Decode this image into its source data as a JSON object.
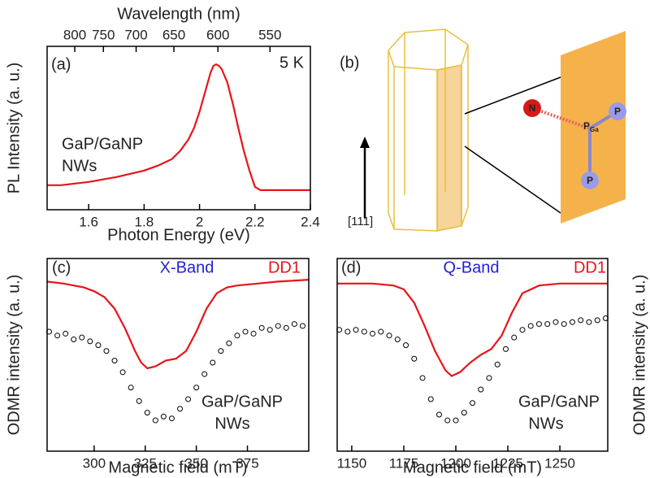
{
  "chart_data": [
    {
      "type": "line",
      "xlabel": "Photon Energy (eV)",
      "ylabel": "PL Intensity (a. u.)",
      "x2label": "Wavelength (nm)",
      "xlim": [
        1.45,
        2.4
      ],
      "xticks": [
        1.6,
        1.8,
        2.0,
        2.2,
        2.4
      ],
      "x2ticks": [
        800,
        750,
        700,
        650,
        600,
        550
      ],
      "ylim": [
        0,
        1
      ],
      "color": "#e8141a",
      "x": [
        1.45,
        1.5,
        1.6,
        1.7,
        1.8,
        1.85,
        1.9,
        1.93,
        1.96,
        1.98,
        2.0,
        2.02,
        2.04,
        2.05,
        2.06,
        2.07,
        2.08,
        2.1,
        2.12,
        2.14,
        2.16,
        2.18,
        2.2,
        2.22,
        2.3,
        2.4
      ],
      "values": [
        0.15,
        0.15,
        0.17,
        0.2,
        0.24,
        0.27,
        0.31,
        0.36,
        0.43,
        0.5,
        0.6,
        0.72,
        0.84,
        0.88,
        0.89,
        0.88,
        0.86,
        0.78,
        0.65,
        0.5,
        0.36,
        0.24,
        0.14,
        0.12,
        0.12,
        0.12
      ],
      "annotations": [
        {
          "text": "(a)"
        },
        {
          "text": "5 K"
        },
        {
          "text": "GaP/GaNP"
        },
        {
          "text": "NWs"
        }
      ]
    },
    {
      "type": "scatter",
      "xlabel": "Magnetic field (mT)",
      "ylabel": "ODMR intensity (a. u.)",
      "xlim": [
        277,
        405
      ],
      "xticks": [
        300,
        325,
        350,
        375
      ],
      "ylim": [
        0,
        1
      ],
      "series": [
        {
          "name": "DD1",
          "color": "#e8141a",
          "mode": "line",
          "x": [
            277,
            285,
            295,
            300,
            305,
            310,
            315,
            320,
            323,
            326,
            330,
            335,
            340,
            345,
            350,
            355,
            360,
            365,
            370,
            380,
            390,
            405
          ],
          "values": [
            0.88,
            0.87,
            0.85,
            0.83,
            0.8,
            0.74,
            0.64,
            0.52,
            0.46,
            0.43,
            0.44,
            0.47,
            0.48,
            0.52,
            0.62,
            0.74,
            0.82,
            0.85,
            0.86,
            0.87,
            0.88,
            0.89
          ]
        },
        {
          "color": "#000000",
          "mode": "markers",
          "x": [
            278,
            282,
            286,
            290,
            294,
            298,
            302,
            306,
            310,
            314,
            318,
            322,
            326,
            330,
            334,
            338,
            342,
            346,
            350,
            354,
            358,
            362,
            366,
            370,
            374,
            378,
            382,
            386,
            390,
            394,
            398,
            402
          ],
          "values": [
            0.62,
            0.6,
            0.61,
            0.58,
            0.59,
            0.57,
            0.55,
            0.52,
            0.47,
            0.41,
            0.33,
            0.26,
            0.2,
            0.16,
            0.18,
            0.17,
            0.22,
            0.27,
            0.33,
            0.4,
            0.46,
            0.52,
            0.56,
            0.6,
            0.62,
            0.61,
            0.64,
            0.63,
            0.65,
            0.64,
            0.66,
            0.65
          ]
        }
      ],
      "annotations": [
        {
          "text": "(c)"
        },
        {
          "text": "X-Band",
          "color": "#2222d8"
        },
        {
          "text": "GaP/GaNP"
        },
        {
          "text": "NWs"
        }
      ]
    },
    {
      "type": "scatter",
      "xlabel": "Magnetic field (mT)",
      "ylabel": "ODMR intensity (a. u.)",
      "xlim": [
        1143,
        1273
      ],
      "xticks": [
        1150,
        1175,
        1200,
        1225,
        1250
      ],
      "ylim": [
        0,
        1
      ],
      "series": [
        {
          "name": "DD1",
          "color": "#e8141a",
          "mode": "line",
          "x": [
            1143,
            1160,
            1170,
            1175,
            1180,
            1185,
            1190,
            1195,
            1198,
            1202,
            1207,
            1212,
            1217,
            1222,
            1227,
            1232,
            1240,
            1250,
            1260,
            1273
          ],
          "values": [
            0.87,
            0.87,
            0.86,
            0.84,
            0.77,
            0.65,
            0.52,
            0.42,
            0.39,
            0.41,
            0.46,
            0.5,
            0.53,
            0.6,
            0.72,
            0.82,
            0.86,
            0.87,
            0.87,
            0.87
          ]
        },
        {
          "color": "#000000",
          "mode": "markers",
          "x": [
            1144,
            1148,
            1152,
            1156,
            1160,
            1164,
            1168,
            1172,
            1176,
            1180,
            1184,
            1188,
            1192,
            1196,
            1200,
            1204,
            1208,
            1212,
            1216,
            1220,
            1224,
            1228,
            1232,
            1236,
            1240,
            1244,
            1248,
            1252,
            1256,
            1260,
            1264,
            1268,
            1272
          ],
          "values": [
            0.63,
            0.62,
            0.63,
            0.62,
            0.61,
            0.62,
            0.6,
            0.58,
            0.55,
            0.48,
            0.38,
            0.27,
            0.19,
            0.16,
            0.16,
            0.2,
            0.25,
            0.32,
            0.38,
            0.45,
            0.53,
            0.59,
            0.63,
            0.65,
            0.66,
            0.66,
            0.67,
            0.66,
            0.67,
            0.68,
            0.67,
            0.68,
            0.69
          ]
        }
      ],
      "annotations": [
        {
          "text": "(d)"
        },
        {
          "text": "Q-Band",
          "color": "#2222d8"
        },
        {
          "text": "GaP/GaNP"
        },
        {
          "text": "NWs"
        }
      ]
    }
  ],
  "diagram": {
    "label": "(b)",
    "axis": "[111]",
    "atoms": [
      {
        "text": "N"
      },
      {
        "text": "P",
        "sub": "Ga"
      },
      {
        "text": "P"
      },
      {
        "text": "P"
      }
    ]
  }
}
